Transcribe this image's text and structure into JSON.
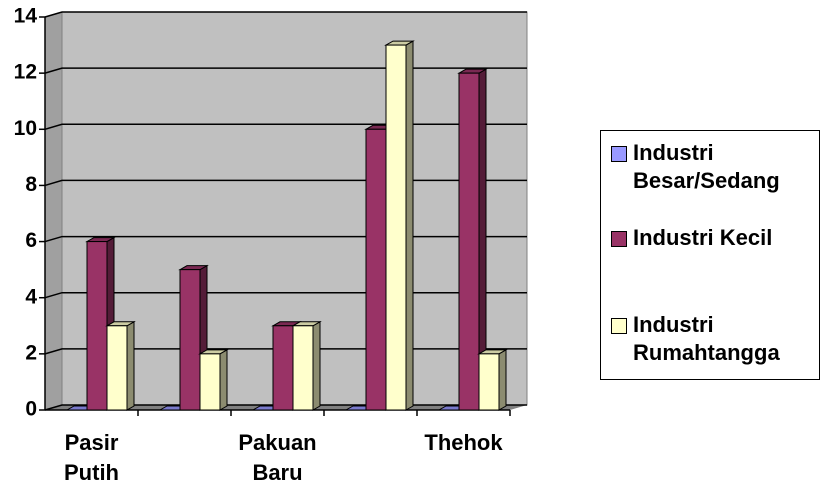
{
  "chart_data": {
    "type": "bar3d",
    "categories": [
      "Pasir Putih",
      null,
      "Pakuan Baru",
      null,
      "Thehok"
    ],
    "series": [
      {
        "name": "Industri Besar/Sedang",
        "color": "#9999ff",
        "values": [
          0,
          0,
          0,
          0,
          0
        ]
      },
      {
        "name": "Industri Kecil",
        "color": "#993366",
        "values": [
          6,
          5,
          3,
          10,
          12
        ]
      },
      {
        "name": "Industri Rumahtangga",
        "color": "#ffffcc",
        "values": [
          3,
          2,
          3,
          13,
          2
        ]
      }
    ],
    "ylim": [
      0,
      14
    ],
    "yticks": [
      0,
      2,
      4,
      6,
      8,
      10,
      12,
      14
    ],
    "grid": true,
    "legend": "right"
  }
}
